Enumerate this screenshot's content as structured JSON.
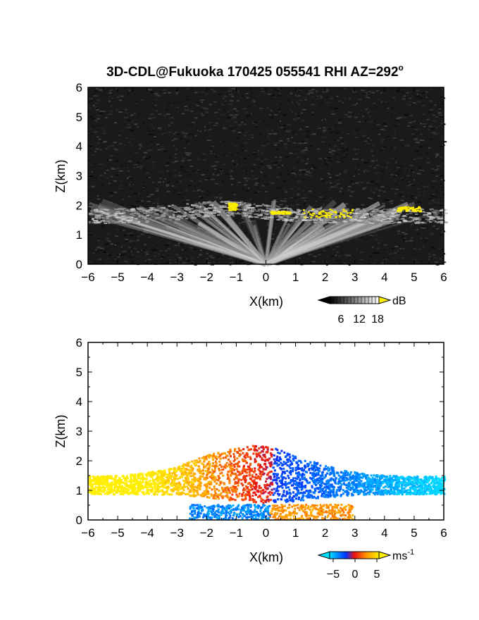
{
  "chart_data": [
    {
      "type": "heatmap",
      "title": "3D-CDL@Fukuoka 170425 055541 RHI AZ=292",
      "title_degree": "o",
      "xlabel": "X(km)",
      "ylabel": "Z(km)",
      "xlim": [
        -6,
        6
      ],
      "ylim": [
        0,
        6
      ],
      "xticks": [
        -6,
        -5,
        -4,
        -3,
        -2,
        -1,
        0,
        1,
        2,
        3,
        4,
        5,
        6
      ],
      "yticks": [
        0,
        1,
        2,
        3,
        4,
        5,
        6
      ],
      "colorbar": {
        "unit": "dB",
        "ticks": [
          "6",
          "12",
          "18"
        ],
        "colormap": "grayscale with yellow above 18",
        "colors": {
          "low": "#000000",
          "high": "#ffffff",
          "over": "#ffee00"
        }
      }
    },
    {
      "type": "heatmap",
      "xlabel": "X(km)",
      "ylabel": "Z(km)",
      "xlim": [
        -6,
        6
      ],
      "ylim": [
        0,
        6
      ],
      "xticks": [
        -6,
        -5,
        -4,
        -3,
        -2,
        -1,
        0,
        1,
        2,
        3,
        4,
        5,
        6
      ],
      "yticks": [
        0,
        1,
        2,
        3,
        4,
        5,
        6
      ],
      "colorbar": {
        "unit": "ms",
        "unit_exponent": "-1",
        "ticks": [
          "−5",
          "0",
          "5"
        ],
        "colormap": "cyan-blue-red-orange-yellow",
        "colors": {
          "negative_far": "#00ddff",
          "negative": "#0033ff",
          "zero": "#ee1111",
          "positive": "#ff9900",
          "positive_far": "#ffee00"
        }
      }
    }
  ]
}
